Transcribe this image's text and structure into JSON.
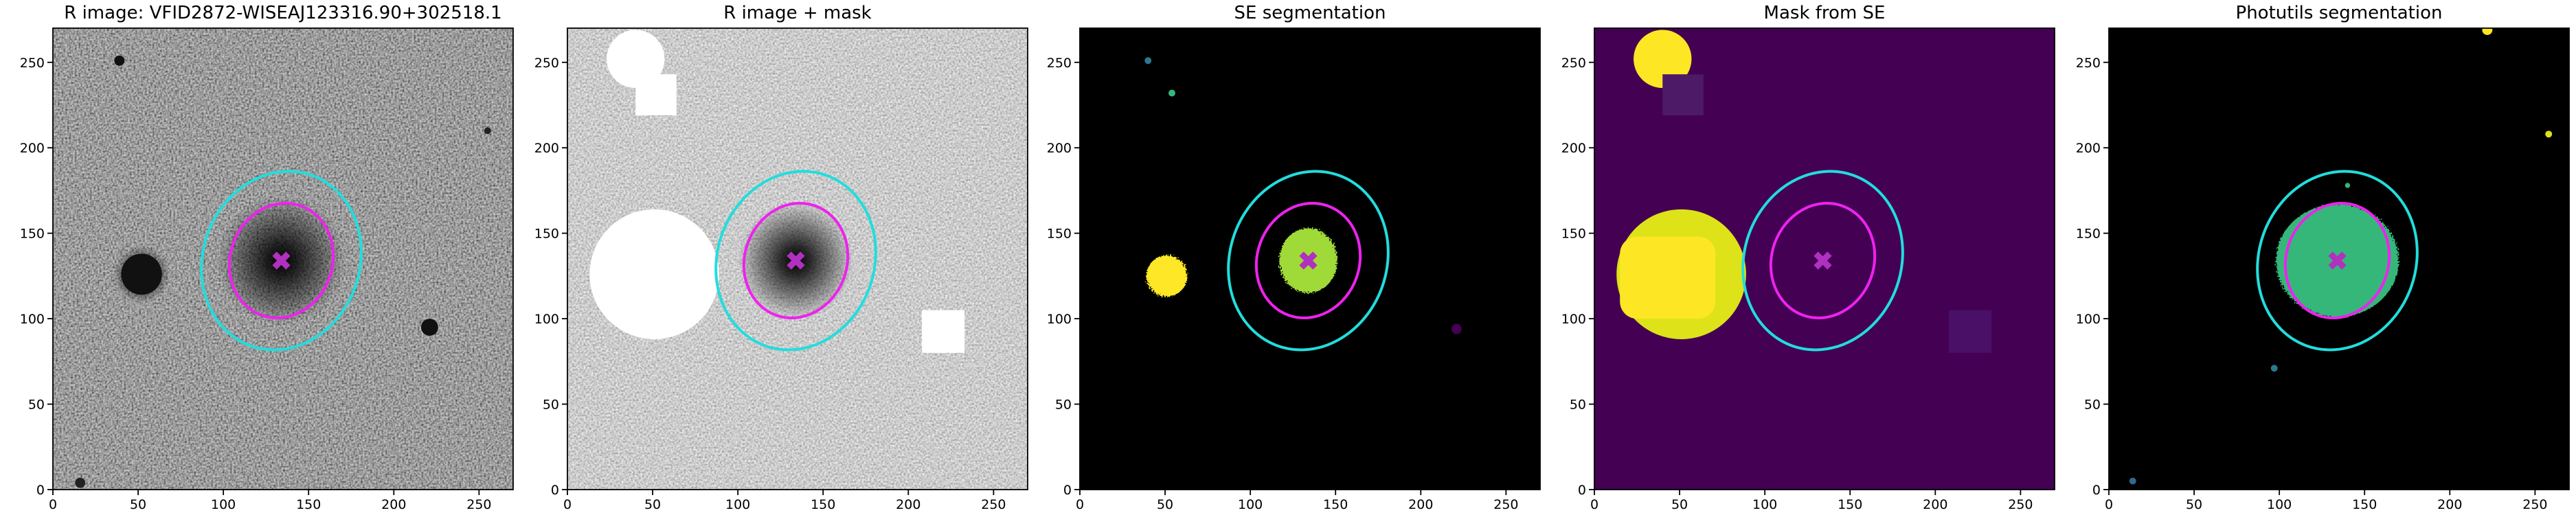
{
  "chart_data": [
    {
      "type": "image",
      "title": "R image: VFID2872-WISEAJ123316.90+302518.1",
      "xlim": [
        0,
        270
      ],
      "ylim": [
        0,
        270
      ],
      "xticks": [
        0,
        50,
        100,
        150,
        200,
        250
      ],
      "yticks": [
        0,
        50,
        100,
        150,
        200,
        250
      ]
    },
    {
      "type": "image",
      "title": "R image + mask",
      "xlim": [
        0,
        270
      ],
      "ylim": [
        0,
        270
      ],
      "xticks": [
        0,
        50,
        100,
        150,
        200,
        250
      ],
      "yticks": [
        0,
        50,
        100,
        150,
        200,
        250
      ]
    },
    {
      "type": "image",
      "title": "SE segmentation",
      "xlim": [
        0,
        270
      ],
      "ylim": [
        0,
        270
      ],
      "xticks": [
        0,
        50,
        100,
        150,
        200,
        250
      ],
      "yticks": [
        0,
        50,
        100,
        150,
        200,
        250
      ]
    },
    {
      "type": "image",
      "title": "Mask from SE",
      "xlim": [
        0,
        270
      ],
      "ylim": [
        0,
        270
      ],
      "xticks": [
        0,
        50,
        100,
        150,
        200,
        250
      ],
      "yticks": [
        0,
        50,
        100,
        150,
        200,
        250
      ]
    },
    {
      "type": "image",
      "title": "Photutils segmentation",
      "xlim": [
        0,
        270
      ],
      "ylim": [
        0,
        270
      ],
      "xticks": [
        0,
        50,
        100,
        150,
        200,
        250
      ],
      "yticks": [
        0,
        50,
        100,
        150,
        200,
        250
      ]
    }
  ]
}
